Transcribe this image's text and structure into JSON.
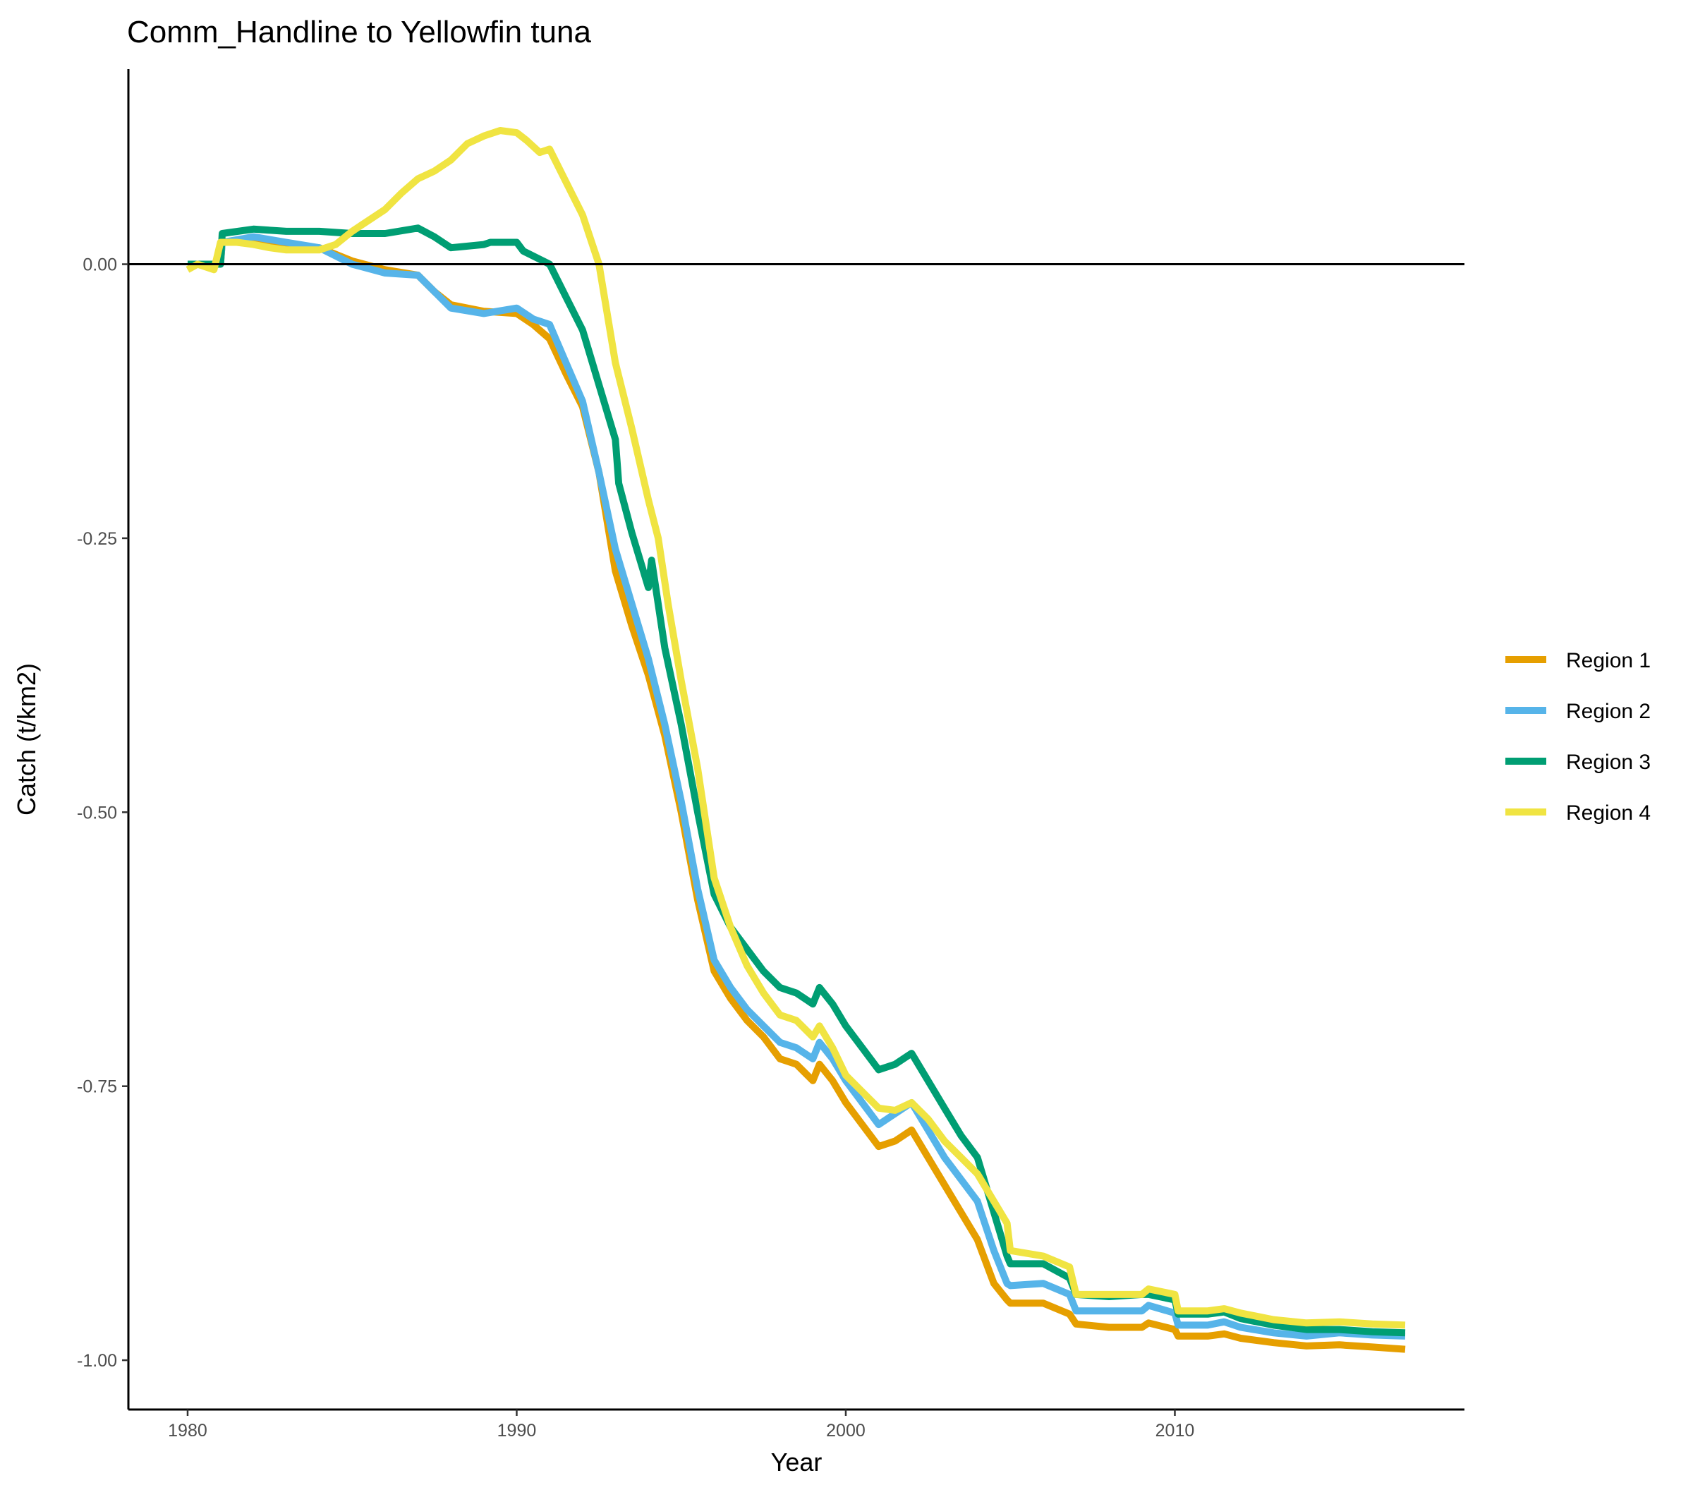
{
  "chart_data": {
    "type": "line",
    "title": "Comm_Handline to Yellowfin tuna",
    "xlabel": "Year",
    "ylabel": "Catch (t/km2)",
    "xlim": [
      1978.2,
      2018.8
    ],
    "ylim": [
      -1.045,
      0.178
    ],
    "x_ticks": [
      1980,
      1990,
      2000,
      2010
    ],
    "x_tick_labels": [
      "1980",
      "1990",
      "2000",
      "2010"
    ],
    "y_ticks": [
      0,
      -0.25,
      -0.5,
      -0.75,
      -1.0
    ],
    "y_tick_labels": [
      "0.00",
      "-0.25",
      "-0.50",
      "-0.75",
      "-1.00"
    ],
    "reference_line_y": 0,
    "grid": false,
    "legend_position": "right",
    "series": [
      {
        "name": "Region 1",
        "color": "#E69F00",
        "points": [
          [
            1980,
            0
          ],
          [
            1981,
            0
          ],
          [
            1981.05,
            0.02
          ],
          [
            1982,
            0.02
          ],
          [
            1983,
            0.018
          ],
          [
            1984,
            0.015
          ],
          [
            1985,
            0.003
          ],
          [
            1986,
            -0.005
          ],
          [
            1987,
            -0.01
          ],
          [
            1987.5,
            -0.025
          ],
          [
            1988,
            -0.037
          ],
          [
            1989,
            -0.043
          ],
          [
            1990,
            -0.045
          ],
          [
            1990.5,
            -0.055
          ],
          [
            1991,
            -0.068
          ],
          [
            1991.5,
            -0.1
          ],
          [
            1992,
            -0.13
          ],
          [
            1992.5,
            -0.19
          ],
          [
            1993,
            -0.28
          ],
          [
            1993.5,
            -0.33
          ],
          [
            1994,
            -0.375
          ],
          [
            1994.5,
            -0.43
          ],
          [
            1995,
            -0.5
          ],
          [
            1995.5,
            -0.58
          ],
          [
            1996,
            -0.645
          ],
          [
            1996.5,
            -0.67
          ],
          [
            1997,
            -0.69
          ],
          [
            1997.5,
            -0.705
          ],
          [
            1998,
            -0.725
          ],
          [
            1998.5,
            -0.73
          ],
          [
            1999,
            -0.745
          ],
          [
            1999.2,
            -0.73
          ],
          [
            1999.6,
            -0.745
          ],
          [
            2000,
            -0.765
          ],
          [
            2000.5,
            -0.785
          ],
          [
            2001,
            -0.805
          ],
          [
            2001.5,
            -0.8
          ],
          [
            2002,
            -0.79
          ],
          [
            2002.5,
            -0.815
          ],
          [
            2003,
            -0.84
          ],
          [
            2003.5,
            -0.865
          ],
          [
            2004,
            -0.89
          ],
          [
            2004.5,
            -0.93
          ],
          [
            2004.9,
            -0.945
          ],
          [
            2005,
            -0.948
          ],
          [
            2006,
            -0.948
          ],
          [
            2006.8,
            -0.958
          ],
          [
            2007,
            -0.967
          ],
          [
            2008,
            -0.97
          ],
          [
            2009,
            -0.97
          ],
          [
            2009.2,
            -0.966
          ],
          [
            2010,
            -0.972
          ],
          [
            2010.1,
            -0.978
          ],
          [
            2011,
            -0.978
          ],
          [
            2011.5,
            -0.976
          ],
          [
            2012,
            -0.98
          ],
          [
            2013,
            -0.984
          ],
          [
            2014,
            -0.987
          ],
          [
            2015,
            -0.986
          ],
          [
            2016,
            -0.988
          ],
          [
            2017,
            -0.99
          ]
        ]
      },
      {
        "name": "Region 2",
        "color": "#56B4E9",
        "points": [
          [
            1980,
            0
          ],
          [
            1981,
            0
          ],
          [
            1981.05,
            0.02
          ],
          [
            1982,
            0.025
          ],
          [
            1983,
            0.02
          ],
          [
            1984,
            0.015
          ],
          [
            1985,
            0
          ],
          [
            1986,
            -0.008
          ],
          [
            1987,
            -0.01
          ],
          [
            1987.5,
            -0.025
          ],
          [
            1988,
            -0.04
          ],
          [
            1989,
            -0.045
          ],
          [
            1990,
            -0.04
          ],
          [
            1990.5,
            -0.05
          ],
          [
            1991,
            -0.055
          ],
          [
            1991.5,
            -0.09
          ],
          [
            1992,
            -0.125
          ],
          [
            1992.5,
            -0.19
          ],
          [
            1993,
            -0.26
          ],
          [
            1993.5,
            -0.31
          ],
          [
            1994,
            -0.36
          ],
          [
            1994.5,
            -0.42
          ],
          [
            1995,
            -0.49
          ],
          [
            1995.5,
            -0.57
          ],
          [
            1996,
            -0.635
          ],
          [
            1996.5,
            -0.66
          ],
          [
            1997,
            -0.68
          ],
          [
            1997.5,
            -0.695
          ],
          [
            1998,
            -0.71
          ],
          [
            1998.5,
            -0.715
          ],
          [
            1999,
            -0.725
          ],
          [
            1999.2,
            -0.71
          ],
          [
            1999.6,
            -0.725
          ],
          [
            2000,
            -0.745
          ],
          [
            2000.5,
            -0.765
          ],
          [
            2001,
            -0.785
          ],
          [
            2001.5,
            -0.775
          ],
          [
            2002,
            -0.765
          ],
          [
            2002.5,
            -0.79
          ],
          [
            2003,
            -0.815
          ],
          [
            2003.5,
            -0.835
          ],
          [
            2004,
            -0.855
          ],
          [
            2004.5,
            -0.9
          ],
          [
            2004.9,
            -0.93
          ],
          [
            2005,
            -0.932
          ],
          [
            2006,
            -0.93
          ],
          [
            2006.8,
            -0.94
          ],
          [
            2007,
            -0.955
          ],
          [
            2008,
            -0.955
          ],
          [
            2009,
            -0.955
          ],
          [
            2009.2,
            -0.95
          ],
          [
            2010,
            -0.957
          ],
          [
            2010.1,
            -0.968
          ],
          [
            2011,
            -0.968
          ],
          [
            2011.5,
            -0.965
          ],
          [
            2012,
            -0.97
          ],
          [
            2013,
            -0.975
          ],
          [
            2014,
            -0.978
          ],
          [
            2015,
            -0.975
          ],
          [
            2016,
            -0.977
          ],
          [
            2017,
            -0.978
          ]
        ]
      },
      {
        "name": "Region 3",
        "color": "#009E73",
        "points": [
          [
            1980,
            0
          ],
          [
            1981,
            0
          ],
          [
            1981.05,
            0.028
          ],
          [
            1982,
            0.032
          ],
          [
            1983,
            0.03
          ],
          [
            1984,
            0.03
          ],
          [
            1985,
            0.028
          ],
          [
            1986,
            0.028
          ],
          [
            1987,
            0.033
          ],
          [
            1987.5,
            0.025
          ],
          [
            1988,
            0.015
          ],
          [
            1989,
            0.018
          ],
          [
            1989.2,
            0.02
          ],
          [
            1990,
            0.02
          ],
          [
            1990.2,
            0.012
          ],
          [
            1991,
            0
          ],
          [
            1991.5,
            -0.03
          ],
          [
            1992,
            -0.06
          ],
          [
            1992.5,
            -0.11
          ],
          [
            1993,
            -0.16
          ],
          [
            1993.1,
            -0.2
          ],
          [
            1993.5,
            -0.245
          ],
          [
            1994,
            -0.295
          ],
          [
            1994.1,
            -0.27
          ],
          [
            1994.5,
            -0.35
          ],
          [
            1995,
            -0.42
          ],
          [
            1995.5,
            -0.5
          ],
          [
            1996,
            -0.575
          ],
          [
            1996.5,
            -0.605
          ],
          [
            1997,
            -0.625
          ],
          [
            1997.5,
            -0.645
          ],
          [
            1998,
            -0.66
          ],
          [
            1998.5,
            -0.665
          ],
          [
            1999,
            -0.675
          ],
          [
            1999.2,
            -0.66
          ],
          [
            1999.6,
            -0.675
          ],
          [
            2000,
            -0.695
          ],
          [
            2000.5,
            -0.715
          ],
          [
            2001,
            -0.735
          ],
          [
            2001.5,
            -0.73
          ],
          [
            2002,
            -0.72
          ],
          [
            2002.5,
            -0.745
          ],
          [
            2003,
            -0.77
          ],
          [
            2003.5,
            -0.795
          ],
          [
            2004,
            -0.815
          ],
          [
            2004.5,
            -0.865
          ],
          [
            2004.9,
            -0.905
          ],
          [
            2005,
            -0.912
          ],
          [
            2006,
            -0.912
          ],
          [
            2006.8,
            -0.925
          ],
          [
            2007,
            -0.94
          ],
          [
            2008,
            -0.942
          ],
          [
            2009,
            -0.94
          ],
          [
            2009.2,
            -0.94
          ],
          [
            2010,
            -0.945
          ],
          [
            2010.1,
            -0.958
          ],
          [
            2011,
            -0.958
          ],
          [
            2011.5,
            -0.956
          ],
          [
            2012,
            -0.962
          ],
          [
            2013,
            -0.968
          ],
          [
            2014,
            -0.972
          ],
          [
            2015,
            -0.972
          ],
          [
            2016,
            -0.974
          ],
          [
            2017,
            -0.975
          ]
        ]
      },
      {
        "name": "Region 4",
        "color": "#F0E442",
        "points": [
          [
            1980,
            -0.005
          ],
          [
            1980.3,
            0
          ],
          [
            1980.8,
            -0.005
          ],
          [
            1981,
            0.02
          ],
          [
            1981.5,
            0.02
          ],
          [
            1982,
            0.018
          ],
          [
            1982.5,
            0.015
          ],
          [
            1983,
            0.013
          ],
          [
            1984,
            0.013
          ],
          [
            1984.5,
            0.018
          ],
          [
            1985,
            0.03
          ],
          [
            1985.5,
            0.04
          ],
          [
            1986,
            0.05
          ],
          [
            1986.5,
            0.065
          ],
          [
            1987,
            0.078
          ],
          [
            1987.5,
            0.085
          ],
          [
            1988,
            0.095
          ],
          [
            1988.5,
            0.11
          ],
          [
            1989,
            0.117
          ],
          [
            1989.5,
            0.122
          ],
          [
            1990,
            0.12
          ],
          [
            1990.3,
            0.113
          ],
          [
            1990.7,
            0.102
          ],
          [
            1991,
            0.105
          ],
          [
            1991.5,
            0.075
          ],
          [
            1992,
            0.045
          ],
          [
            1992.5,
            0
          ],
          [
            1993,
            -0.09
          ],
          [
            1993.5,
            -0.15
          ],
          [
            1994,
            -0.215
          ],
          [
            1994.3,
            -0.25
          ],
          [
            1994.6,
            -0.31
          ],
          [
            1995,
            -0.38
          ],
          [
            1995.5,
            -0.46
          ],
          [
            1996,
            -0.56
          ],
          [
            1996.5,
            -0.605
          ],
          [
            1997,
            -0.64
          ],
          [
            1997.5,
            -0.665
          ],
          [
            1998,
            -0.685
          ],
          [
            1998.5,
            -0.69
          ],
          [
            1999,
            -0.705
          ],
          [
            1999.2,
            -0.695
          ],
          [
            1999.6,
            -0.715
          ],
          [
            2000,
            -0.74
          ],
          [
            2000.5,
            -0.755
          ],
          [
            2001,
            -0.77
          ],
          [
            2001.5,
            -0.772
          ],
          [
            2002,
            -0.765
          ],
          [
            2002.5,
            -0.78
          ],
          [
            2003,
            -0.8
          ],
          [
            2003.5,
            -0.815
          ],
          [
            2004,
            -0.83
          ],
          [
            2004.5,
            -0.855
          ],
          [
            2004.9,
            -0.875
          ],
          [
            2005,
            -0.9
          ],
          [
            2006,
            -0.905
          ],
          [
            2006.8,
            -0.915
          ],
          [
            2007,
            -0.94
          ],
          [
            2008,
            -0.94
          ],
          [
            2009,
            -0.94
          ],
          [
            2009.2,
            -0.935
          ],
          [
            2010,
            -0.94
          ],
          [
            2010.1,
            -0.955
          ],
          [
            2011,
            -0.955
          ],
          [
            2011.5,
            -0.953
          ],
          [
            2012,
            -0.957
          ],
          [
            2013,
            -0.963
          ],
          [
            2014,
            -0.966
          ],
          [
            2015,
            -0.965
          ],
          [
            2016,
            -0.967
          ],
          [
            2017,
            -0.968
          ]
        ]
      }
    ]
  }
}
